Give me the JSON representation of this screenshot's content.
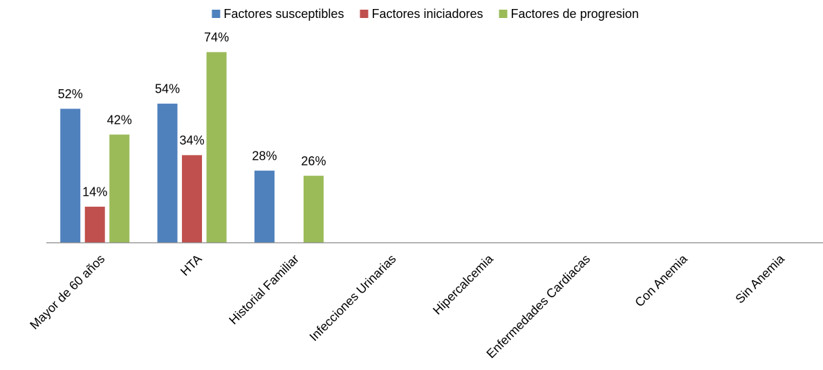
{
  "chart_data": {
    "type": "bar",
    "categories": [
      "Mayor de 60 años",
      "HTA",
      "Historial Familiar",
      "Infecciones Urinarias",
      "Hipercalcemia",
      "Enfermedades Cardiacas",
      "Con Anemia",
      "Sin Anemia"
    ],
    "series": [
      {
        "name": "Factores susceptibles",
        "color": "#4f81bd",
        "values": [
          52,
          54,
          28,
          null,
          null,
          null,
          null,
          null
        ],
        "value_labels": [
          "52%",
          "54%",
          "28%",
          null,
          null,
          null,
          null,
          null
        ]
      },
      {
        "name": "Factores iniciadores",
        "color": "#c0504d",
        "values": [
          14,
          34,
          null,
          null,
          null,
          null,
          null,
          null
        ],
        "value_labels": [
          "14%",
          "34%",
          null,
          null,
          null,
          null,
          null,
          null
        ]
      },
      {
        "name": "Factores de progresion",
        "color": "#9bbb59",
        "values": [
          42,
          74,
          26,
          null,
          null,
          null,
          null,
          null
        ],
        "value_labels": [
          "42%",
          "74%",
          "26%",
          null,
          null,
          null,
          null,
          null
        ]
      }
    ],
    "ylim": [
      0,
      80
    ],
    "legend": "top"
  }
}
